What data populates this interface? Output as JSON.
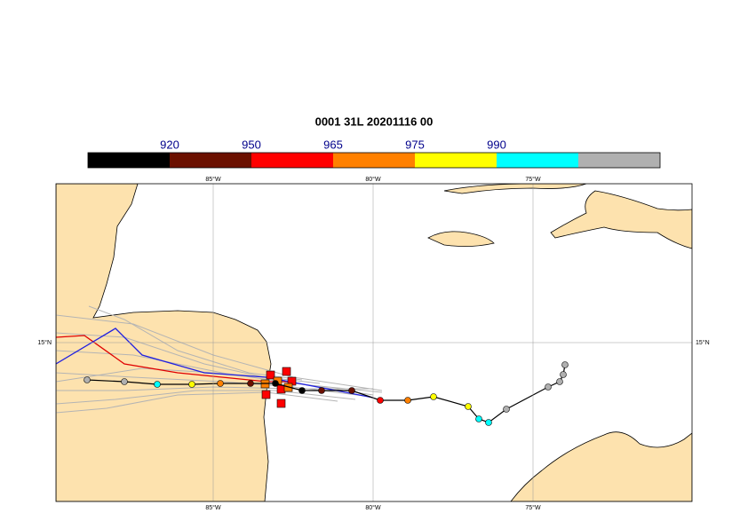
{
  "title": "0001 31L 20201116 00",
  "colorbar": {
    "labels": [
      "920",
      "950",
      "965",
      "975",
      "990"
    ],
    "colors": [
      "#000000",
      "#6b1000",
      "#ff0000",
      "#ff8000",
      "#ffff00",
      "#00ffff",
      "#b0b0b0"
    ]
  },
  "lon_labels": [
    "85°W",
    "80°W",
    "75°W"
  ],
  "lat_labels": [
    "15°N"
  ]
}
